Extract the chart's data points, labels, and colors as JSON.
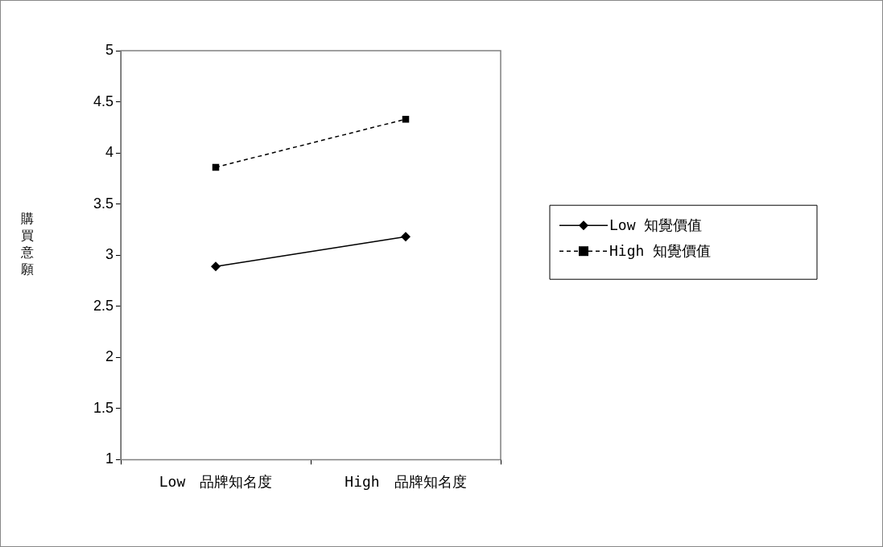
{
  "chart_data": {
    "type": "line",
    "ylabel": "購買意願",
    "categories": [
      "Low　品牌知名度",
      "High　品牌知名度"
    ],
    "series": [
      {
        "name": "Low 知覺價值",
        "color": "#000000",
        "values": [
          2.89,
          3.18
        ],
        "marker": "diamond",
        "line_style": "solid"
      },
      {
        "name": "High 知覺價值",
        "color": "#000000",
        "values": [
          3.86,
          4.33
        ],
        "marker": "square",
        "line_style": "dashed"
      }
    ],
    "ylim": [
      1,
      5
    ],
    "yticks": [
      1,
      1.5,
      2,
      2.5,
      3,
      3.5,
      4,
      4.5,
      5
    ],
    "grid": false,
    "legend": "right"
  }
}
